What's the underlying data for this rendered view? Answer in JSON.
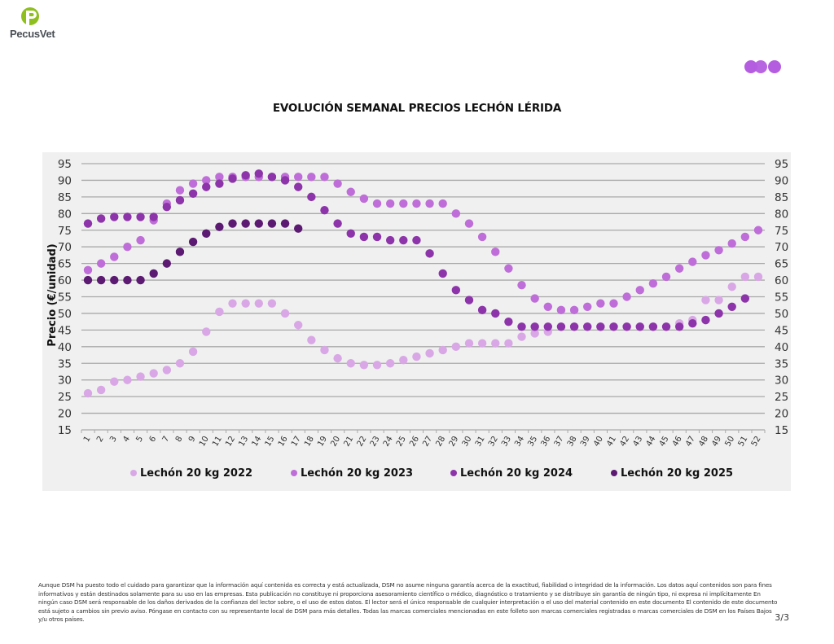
{
  "header": {
    "logo_text": "PecusVet",
    "brand_colors": {
      "logo_green": "#8fbf1f",
      "dots_purple": "#b45de0"
    }
  },
  "chart_data": {
    "type": "scatter",
    "title": "EVOLUCIÓN SEMANAL PRECIOS LECHÓN LÉRIDA",
    "ylabel": "Precio (€/unidad)",
    "xlabel": "",
    "ylim": [
      15,
      95
    ],
    "yticks": [
      15,
      20,
      25,
      30,
      35,
      40,
      45,
      50,
      55,
      60,
      65,
      70,
      75,
      80,
      85,
      90,
      95
    ],
    "x": [
      "1",
      "2",
      "3",
      "4",
      "5",
      "6",
      "7",
      "8",
      "9",
      "10",
      "11",
      "12",
      "13",
      "14",
      "15",
      "16",
      "17",
      "18",
      "19",
      "20",
      "21",
      "22",
      "23",
      "24",
      "25",
      "26",
      "27",
      "28",
      "29",
      "30",
      "31",
      "32",
      "33",
      "34",
      "35",
      "36",
      "37",
      "38",
      "39",
      "40",
      "41",
      "42",
      "43",
      "44",
      "45",
      "46",
      "47",
      "48",
      "49",
      "50",
      "51",
      "52"
    ],
    "grid": true,
    "legend": "bottom",
    "series": [
      {
        "name": "Lechón 20 kg 2022",
        "color": "#d9a7e6",
        "values": [
          26,
          27,
          29.5,
          30,
          31,
          32,
          33,
          35,
          38.5,
          44.5,
          50.5,
          53,
          53,
          53,
          53,
          50,
          46.5,
          42,
          39,
          36.5,
          35,
          34.5,
          34.5,
          35,
          36,
          37,
          38,
          39,
          40,
          41,
          41,
          41,
          41,
          43,
          44,
          44.5,
          46,
          46,
          46,
          46,
          46,
          46,
          46,
          46,
          46,
          47,
          48,
          54,
          54,
          58,
          61,
          61
        ]
      },
      {
        "name": "Lechón 20 kg 2023",
        "color": "#bf6dd8",
        "values": [
          63,
          65,
          67,
          70,
          72,
          78,
          83,
          87,
          89,
          90,
          91,
          91,
          91,
          91,
          91,
          91,
          91,
          91,
          91,
          89,
          86.5,
          84.5,
          83,
          83,
          83,
          83,
          83,
          83,
          80,
          77,
          73,
          68.5,
          63.5,
          58.5,
          54.5,
          52,
          51,
          51,
          52,
          53,
          53,
          55,
          57,
          59,
          61,
          63.5,
          65.5,
          67.5,
          69,
          71,
          73,
          75
        ]
      },
      {
        "name": "Lechón 20 kg 2024",
        "color": "#8d34aa",
        "values": [
          77,
          78.5,
          79,
          79,
          79,
          79,
          82,
          84,
          86,
          88,
          89,
          90.5,
          91.5,
          92,
          91,
          90,
          88,
          85,
          81,
          77,
          74,
          73,
          73,
          72,
          72,
          72,
          68,
          62,
          57,
          54,
          51,
          50,
          47.5,
          46,
          46,
          46,
          46,
          46,
          46,
          46,
          46,
          46,
          46,
          46,
          46,
          46,
          47,
          48,
          50,
          52,
          54.5,
          null
        ]
      },
      {
        "name": "Lechón 20 kg 2025",
        "color": "#5c1a72",
        "values": [
          60,
          60,
          60,
          60,
          60,
          62,
          65,
          68.5,
          71.5,
          74,
          76,
          77,
          77,
          77,
          77,
          77,
          75.5,
          null,
          null,
          null,
          null,
          null,
          null,
          null,
          null,
          null,
          null,
          null,
          null,
          null,
          null,
          null,
          null,
          null,
          null,
          null,
          null,
          null,
          null,
          null,
          null,
          null,
          null,
          null,
          null,
          null,
          null,
          null,
          null,
          null,
          null,
          null
        ]
      }
    ]
  },
  "footer": {
    "disclaimer": "Aunque DSM ha puesto todo el cuidado para garantizar que la información aquí contenida es correcta y está actualizada, DSM no asume ninguna garantía acerca de la exactitud, fiabilidad o integridad de la información. Los datos aquí contenidos son para fines informativos y están destinados solamente para su uso en las empresas. Esta publicación no constituye ni proporciona asesoramiento científico o médico, diagnóstico o tratamiento y se distribuye sin garantía de ningún tipo, ni expresa ni implícitamente En ningún caso DSM será responsable de los daños derivados de la confianza del lector sobre, o el uso de estos datos. El lector será el único responsable de cualquier interpretación o el uso del material contenido en este documento El contenido de este documento está sujeto a cambios sin previo aviso. Póngase en contacto con su representante local de DSM para más detalles. Todas las marcas comerciales mencionadas en este folleto son marcas comerciales registradas o marcas comerciales de DSM en los Países Bajos y/u otros países.",
    "page_number": "3/3"
  }
}
